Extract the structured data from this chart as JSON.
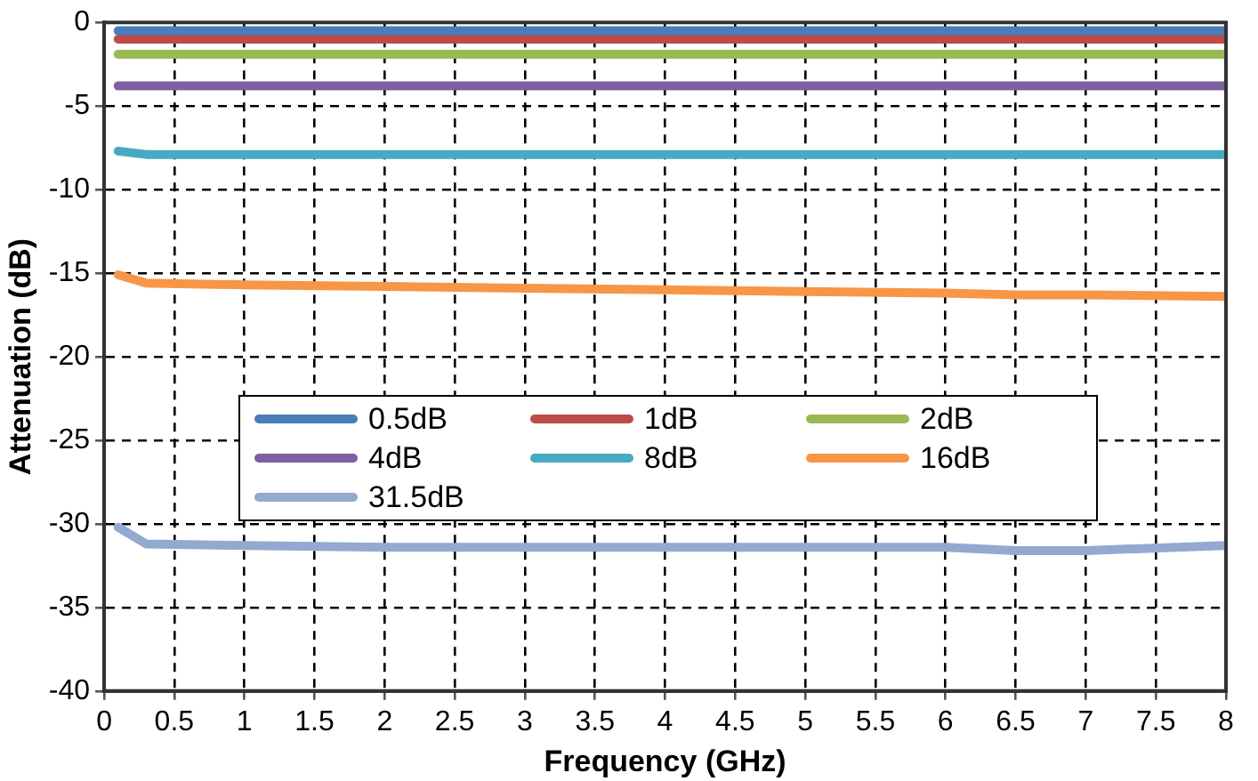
{
  "chart_data": {
    "type": "line",
    "xlabel": "Frequency (GHz)",
    "ylabel": "Attenuation (dB)",
    "x": [
      0.1,
      0.3,
      1,
      2,
      3,
      4,
      5,
      6,
      6.5,
      7,
      8
    ],
    "series": [
      {
        "name": "0.5dB",
        "color": "#4a7ebb",
        "values": [
          -0.5,
          -0.5,
          -0.5,
          -0.5,
          -0.5,
          -0.5,
          -0.5,
          -0.5,
          -0.5,
          -0.5,
          -0.5
        ]
      },
      {
        "name": "1dB",
        "color": "#be4b48",
        "values": [
          -1.0,
          -1.0,
          -1.0,
          -1.0,
          -1.0,
          -1.0,
          -1.0,
          -1.0,
          -1.0,
          -1.0,
          -1.0
        ]
      },
      {
        "name": "2dB",
        "color": "#98b954",
        "values": [
          -1.9,
          -1.9,
          -1.9,
          -1.9,
          -1.9,
          -1.9,
          -1.9,
          -1.9,
          -1.9,
          -1.9,
          -1.9
        ]
      },
      {
        "name": "4dB",
        "color": "#7d60a0",
        "values": [
          -3.8,
          -3.8,
          -3.8,
          -3.8,
          -3.8,
          -3.8,
          -3.8,
          -3.8,
          -3.8,
          -3.8,
          -3.8
        ]
      },
      {
        "name": "8dB",
        "color": "#46aac5",
        "values": [
          -7.7,
          -7.9,
          -7.9,
          -7.9,
          -7.9,
          -7.9,
          -7.9,
          -7.9,
          -7.9,
          -7.9,
          -7.9
        ]
      },
      {
        "name": "16dB",
        "color": "#f79646",
        "values": [
          -15.1,
          -15.6,
          -15.7,
          -15.8,
          -15.9,
          -16.0,
          -16.1,
          -16.2,
          -16.3,
          -16.3,
          -16.4
        ]
      },
      {
        "name": "31.5dB",
        "color": "#93a9d0",
        "values": [
          -30.2,
          -31.2,
          -31.3,
          -31.4,
          -31.4,
          -31.4,
          -31.4,
          -31.4,
          -31.6,
          -31.6,
          -31.3
        ]
      }
    ],
    "xlim": [
      0,
      8
    ],
    "xticks": [
      0,
      0.5,
      1,
      1.5,
      2,
      2.5,
      3,
      3.5,
      4,
      4.5,
      5,
      5.5,
      6,
      6.5,
      7,
      7.5,
      8
    ],
    "ylim": [
      -40,
      0
    ],
    "yticks": [
      -40,
      -35,
      -30,
      -25,
      -20,
      -15,
      -10,
      -5,
      0
    ],
    "grid": true,
    "legend": "bottom left",
    "line_style": "solid",
    "marker": "none"
  }
}
